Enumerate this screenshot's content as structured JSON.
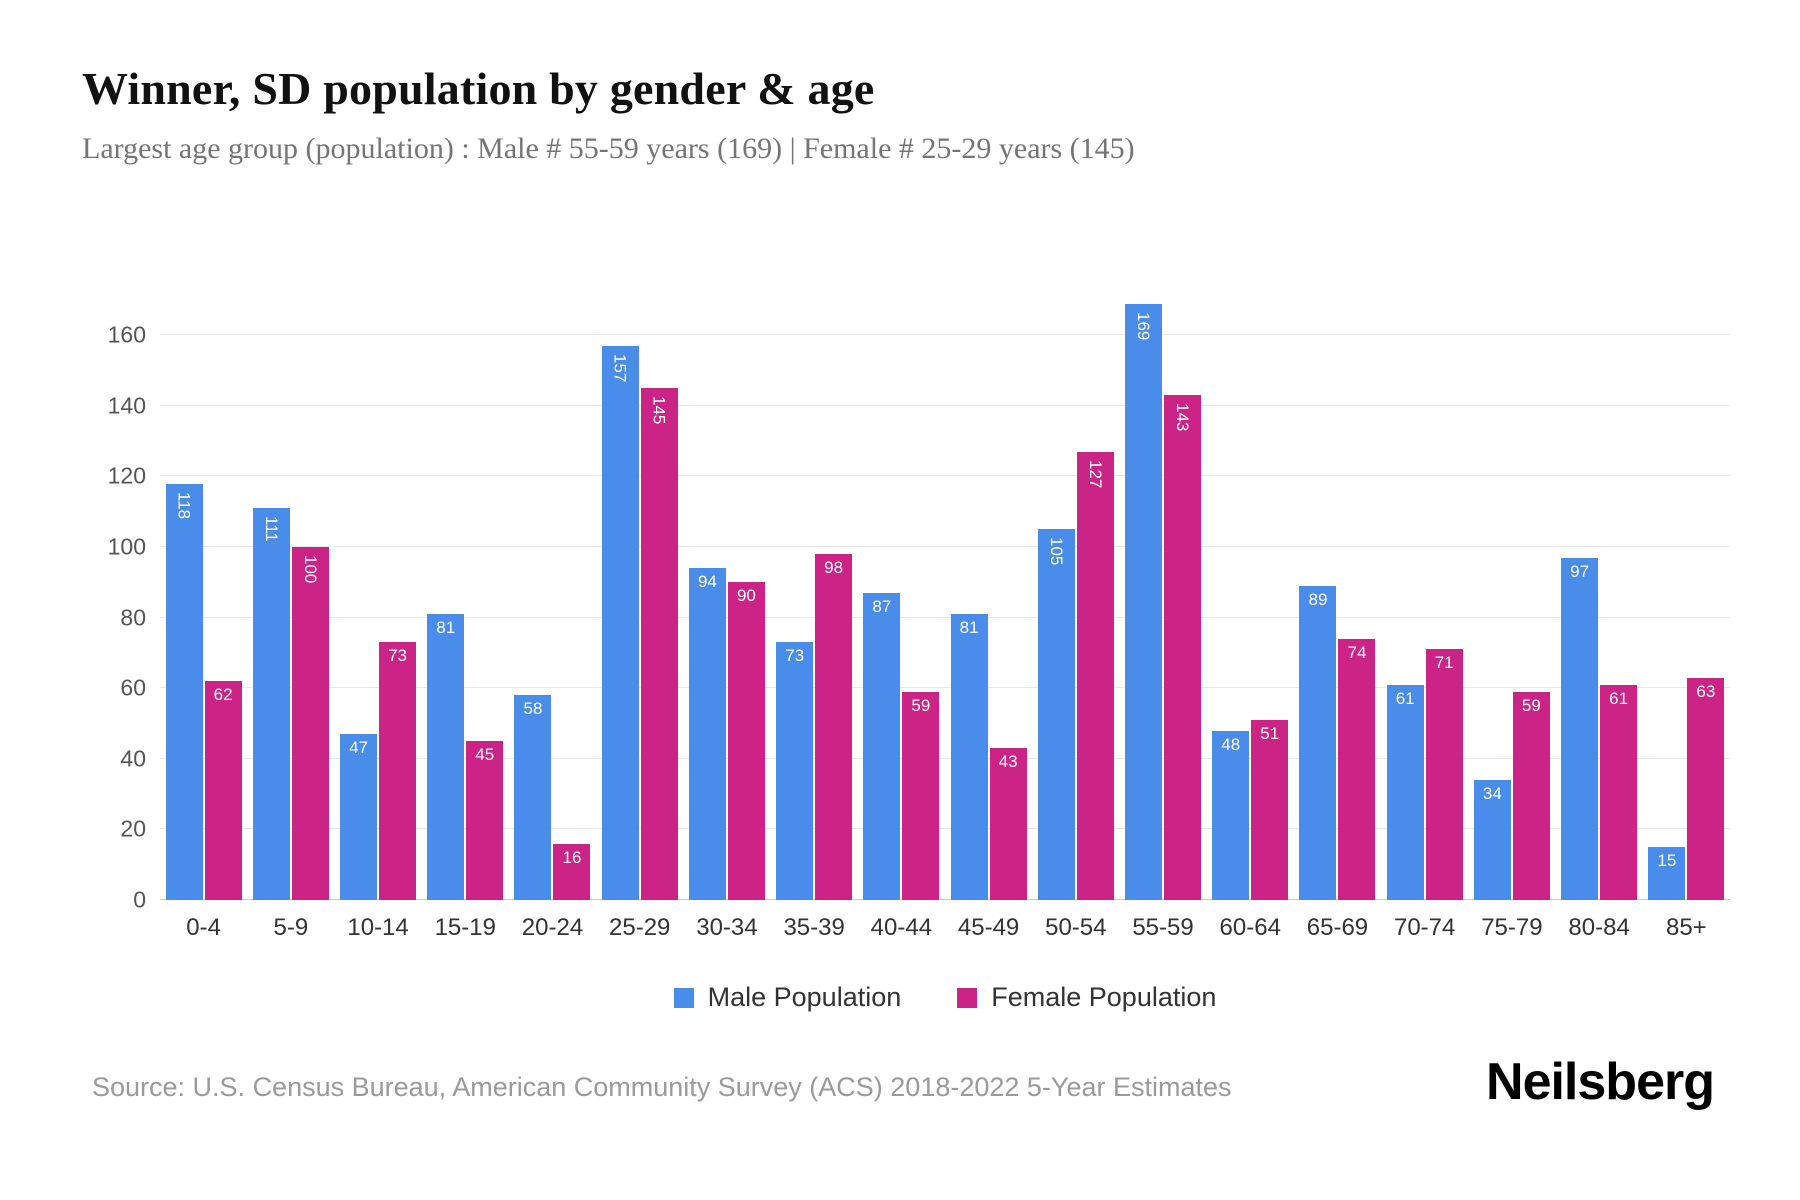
{
  "header": {
    "title": "Winner, SD population by gender & age",
    "subtitle": "Largest age group (population) : Male # 55-59 years (169) | Female # 25-29 years (145)"
  },
  "footer": {
    "source": "Source: U.S. Census Bureau, American Community Survey (ACS) 2018-2022 5-Year Estimates",
    "brand": "Neilsberg"
  },
  "colors": {
    "male": "#4a8cea",
    "female": "#cc2387",
    "grid": "#e8e8e8",
    "label_text": "#ffffff"
  },
  "chart_data": {
    "type": "bar",
    "title": "Winner, SD population by gender & age",
    "categories": [
      "0-4",
      "5-9",
      "10-14",
      "15-19",
      "20-24",
      "25-29",
      "30-34",
      "35-39",
      "40-44",
      "45-49",
      "50-54",
      "55-59",
      "60-64",
      "65-69",
      "70-74",
      "75-79",
      "80-84",
      "85+"
    ],
    "series": [
      {
        "name": "Male Population",
        "color": "#4a8cea",
        "values": [
          118,
          111,
          47,
          81,
          58,
          157,
          94,
          73,
          87,
          81,
          105,
          169,
          48,
          89,
          61,
          34,
          97,
          15
        ]
      },
      {
        "name": "Female Population",
        "color": "#cc2387",
        "values": [
          62,
          100,
          73,
          45,
          16,
          145,
          90,
          98,
          59,
          43,
          127,
          143,
          51,
          74,
          71,
          59,
          61,
          63
        ]
      }
    ],
    "xlabel": "",
    "ylabel": "",
    "ylim": [
      0,
      170
    ],
    "yticks": [
      0,
      20,
      40,
      60,
      80,
      100,
      120,
      140,
      160
    ],
    "grid": true,
    "legend_position": "bottom",
    "value_labels": "inside-top, white, rotated vertical when value >= 100"
  }
}
